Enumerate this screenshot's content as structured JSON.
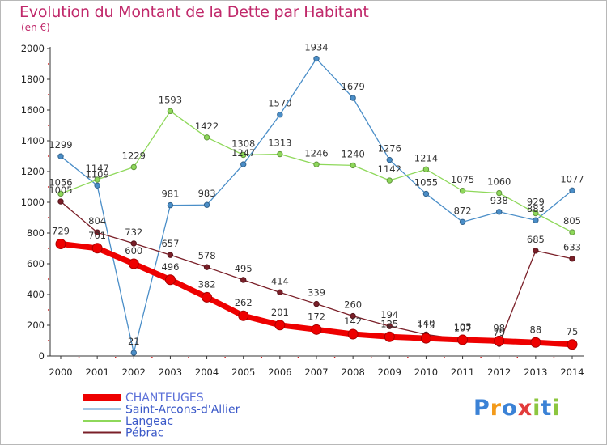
{
  "title": "Evolution du Montant de la Dette par Habitant",
  "unit_label": "(en €)",
  "logo_text": "Proxiti",
  "chart_data": {
    "type": "line",
    "x": [
      2000,
      2001,
      2002,
      2003,
      2004,
      2005,
      2006,
      2007,
      2008,
      2009,
      2010,
      2011,
      2012,
      2013,
      2014
    ],
    "ylim": [
      0,
      2000
    ],
    "yticks": [
      0,
      200,
      400,
      600,
      800,
      1000,
      1200,
      1400,
      1600,
      1800,
      2000
    ],
    "grid": false,
    "legend_position": "bottom-left",
    "series": [
      {
        "name": "CHANTEUGES",
        "color": "#ee0000",
        "values": [
          729,
          701,
          600,
          496,
          382,
          262,
          201,
          172,
          142,
          125,
          115,
          105,
          98,
          88,
          75
        ]
      },
      {
        "name": "Saint-Arcons-d'Allier",
        "color": "#4a8ec8",
        "values": [
          1299,
          1109,
          21,
          981,
          983,
          1247,
          1570,
          1934,
          1679,
          1276,
          1055,
          872,
          938,
          883,
          1077
        ]
      },
      {
        "name": "Langeac",
        "color": "#8ed85a",
        "values": [
          1056,
          1147,
          1229,
          1593,
          1422,
          1308,
          1313,
          1246,
          1240,
          1142,
          1214,
          1075,
          1060,
          929,
          805
        ]
      },
      {
        "name": "Pébrac",
        "color": "#7a1f28",
        "values": [
          1005,
          804,
          732,
          657,
          578,
          495,
          414,
          339,
          260,
          194,
          140,
          107,
          79,
          685,
          633
        ]
      }
    ]
  }
}
